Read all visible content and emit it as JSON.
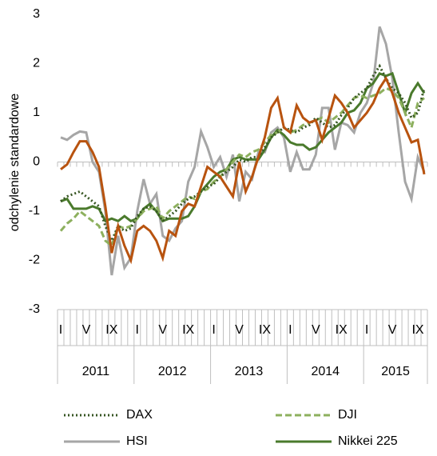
{
  "chart_data": {
    "type": "line",
    "ylabel": "odchylenie standardowe",
    "ylim": [
      -3,
      3
    ],
    "yticks": [
      -3,
      -2,
      -1,
      0,
      1,
      2,
      3
    ],
    "categories": [
      "I",
      null,
      null,
      null,
      "V",
      null,
      null,
      null,
      "IX",
      null,
      null,
      null,
      "I",
      null,
      null,
      null,
      "V",
      null,
      null,
      null,
      "IX",
      null,
      null,
      null,
      "I",
      null,
      null,
      null,
      "V",
      null,
      null,
      null,
      "IX",
      null,
      null,
      null,
      "I",
      null,
      null,
      null,
      "V",
      null,
      null,
      null,
      "IX",
      null,
      null,
      null,
      "I",
      null,
      null,
      null,
      "V",
      null,
      null,
      null,
      "IX",
      null
    ],
    "years": [
      "2011",
      "2012",
      "2013",
      "2014",
      "2015"
    ],
    "series": [
      {
        "name": "DAX",
        "color": "#375623",
        "dash": "dotted",
        "values": [
          -0.8,
          -0.7,
          -0.65,
          -0.6,
          -0.7,
          -0.8,
          -0.9,
          -1.3,
          -1.6,
          -1.3,
          -1.4,
          -1.35,
          -1.1,
          -0.95,
          -0.9,
          -1.0,
          -1.2,
          -1.1,
          -1.0,
          -0.85,
          -0.75,
          -0.7,
          -0.6,
          -0.5,
          -0.45,
          -0.3,
          -0.2,
          -0.1,
          0.05,
          0.0,
          0.1,
          0.1,
          0.3,
          0.5,
          0.6,
          0.7,
          0.65,
          0.6,
          0.7,
          0.75,
          0.9,
          0.8,
          0.7,
          0.75,
          0.95,
          1.1,
          1.3,
          1.4,
          1.5,
          1.75,
          1.95,
          1.7,
          1.5,
          1.4,
          1.2,
          0.9,
          1.0,
          1.5
        ]
      },
      {
        "name": "DJI",
        "color": "#8db05e",
        "dash": "dashed",
        "values": [
          -1.4,
          -1.25,
          -1.15,
          -1.0,
          -1.1,
          -1.2,
          -1.3,
          -1.6,
          -1.7,
          -1.3,
          -1.35,
          -1.3,
          -1.15,
          -1.0,
          -0.95,
          -0.9,
          -1.15,
          -1.0,
          -0.9,
          -0.8,
          -0.7,
          -0.75,
          -0.6,
          -0.55,
          -0.4,
          -0.3,
          -0.15,
          0.0,
          0.15,
          0.1,
          0.2,
          0.25,
          0.4,
          0.55,
          0.6,
          0.7,
          0.6,
          0.65,
          0.75,
          0.8,
          0.85,
          0.9,
          0.8,
          0.9,
          1.0,
          1.15,
          1.3,
          1.35,
          1.3,
          1.35,
          1.4,
          1.5,
          1.45,
          1.3,
          1.0,
          0.7,
          1.2,
          1.3
        ]
      },
      {
        "name": "HSI",
        "color": "#a6a6a6",
        "dash": "solid",
        "values": [
          0.5,
          0.45,
          0.55,
          0.62,
          0.6,
          0.0,
          -0.2,
          -1.0,
          -2.3,
          -1.5,
          -2.15,
          -1.95,
          -1.0,
          -0.35,
          -0.85,
          -0.65,
          -1.5,
          -1.6,
          -1.35,
          -1.2,
          -0.4,
          -0.1,
          0.62,
          0.3,
          -0.1,
          0.1,
          -0.3,
          0.15,
          -0.8,
          -0.2,
          -0.35,
          0.2,
          0.2,
          0.6,
          0.7,
          0.5,
          -0.2,
          0.2,
          -0.15,
          -0.15,
          0.15,
          1.1,
          1.1,
          0.25,
          0.8,
          0.75,
          0.6,
          1.0,
          1.2,
          1.6,
          2.75,
          2.4,
          1.7,
          0.6,
          -0.4,
          -0.75,
          0.1,
          -0.2
        ]
      },
      {
        "name": "Nikkei 225",
        "color": "#4a7a2c",
        "dash": "solid",
        "values": [
          -0.8,
          -0.75,
          -0.95,
          -0.95,
          -0.95,
          -0.9,
          -0.95,
          -1.2,
          -1.15,
          -1.2,
          -1.1,
          -1.2,
          -1.15,
          -0.95,
          -0.85,
          -1.0,
          -1.2,
          -1.15,
          -1.15,
          -1.15,
          -1.1,
          -0.9,
          -0.6,
          -0.45,
          -0.3,
          -0.2,
          -0.15,
          0.05,
          0.1,
          0.05,
          0.05,
          0.05,
          0.25,
          0.5,
          0.65,
          0.55,
          0.4,
          0.35,
          0.35,
          0.25,
          0.3,
          0.45,
          0.6,
          0.7,
          0.8,
          1.0,
          1.05,
          1.2,
          1.5,
          1.6,
          1.8,
          1.75,
          1.8,
          1.4,
          1.0,
          1.4,
          1.6,
          1.4
        ]
      },
      {
        "color": "#b8530f",
        "dash": "solid",
        "values": [
          -0.15,
          -0.05,
          0.2,
          0.42,
          0.42,
          0.2,
          -0.1,
          -0.9,
          -1.85,
          -1.3,
          -1.7,
          -2.0,
          -1.4,
          -1.3,
          -1.4,
          -1.6,
          -1.95,
          -1.4,
          -1.5,
          -1.0,
          -0.85,
          -0.9,
          -0.5,
          -0.1,
          -0.2,
          -0.3,
          -0.5,
          -0.7,
          0.0,
          -0.6,
          -0.3,
          0.1,
          0.5,
          1.1,
          1.3,
          0.7,
          0.6,
          1.15,
          0.9,
          0.8,
          0.85,
          0.45,
          0.9,
          1.35,
          1.2,
          1.0,
          0.7,
          0.85,
          1.0,
          1.2,
          1.5,
          1.7,
          1.4,
          1.0,
          0.7,
          0.4,
          0.45,
          -0.25
        ]
      }
    ]
  }
}
